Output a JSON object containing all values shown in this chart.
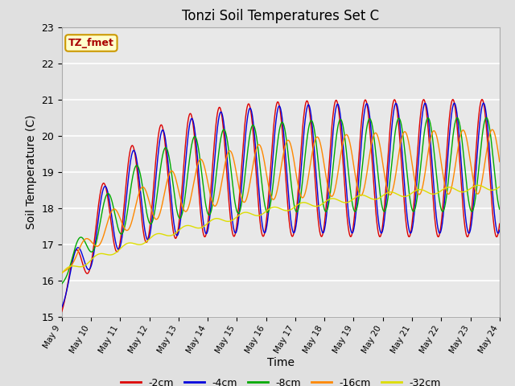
{
  "title": "Tonzi Soil Temperatures Set C",
  "xlabel": "Time",
  "ylabel": "Soil Temperature (C)",
  "ylim": [
    15.0,
    23.0
  ],
  "yticks": [
    15.0,
    16.0,
    17.0,
    18.0,
    19.0,
    20.0,
    21.0,
    22.0,
    23.0
  ],
  "xtick_labels": [
    "May 9",
    "May 10",
    "May 11",
    "May 12",
    "May 13",
    "May 14",
    "May 15",
    "May 16",
    "May 17",
    "May 18",
    "May 19",
    "May 20",
    "May 21",
    "May 22",
    "May 23",
    "May 24"
  ],
  "legend_labels": [
    "-2cm",
    "-4cm",
    "-8cm",
    "-16cm",
    "-32cm"
  ],
  "line_colors": [
    "#dd0000",
    "#0000dd",
    "#00aa00",
    "#ff8800",
    "#dddd00"
  ],
  "annotation_text": "TZ_fmet",
  "annotation_box_color": "#ffffcc",
  "annotation_text_color": "#aa0000",
  "bg_color": "#e0e0e0",
  "plot_bg_color": "#e8e8e8",
  "n_points": 1440,
  "day_start": 9,
  "day_end": 24
}
